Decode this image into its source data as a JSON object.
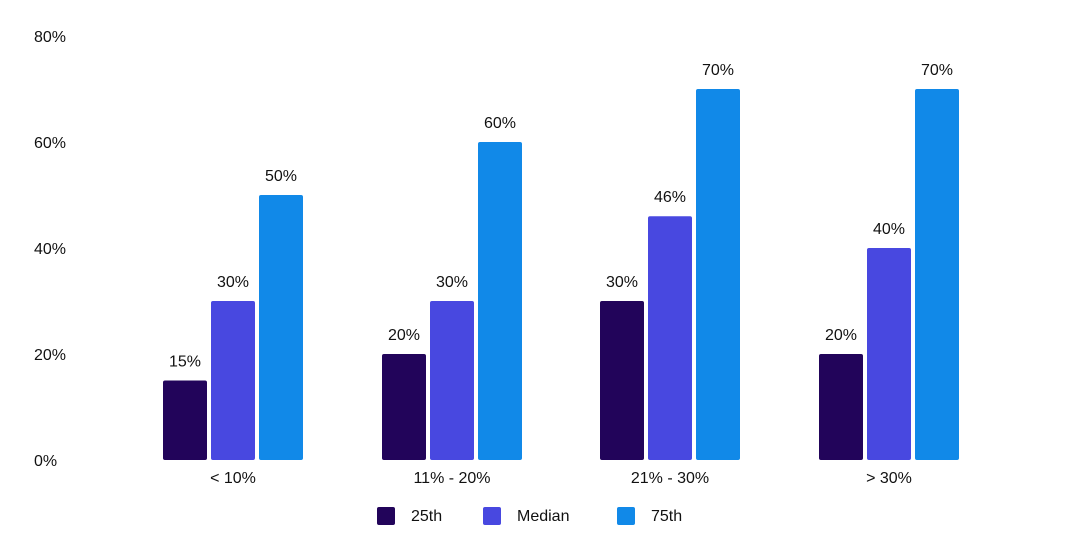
{
  "chart_data": {
    "type": "bar",
    "title": "",
    "xlabel": "",
    "ylabel": "",
    "ylim": [
      0,
      80
    ],
    "yticks": [
      "0%",
      "20%",
      "40%",
      "60%",
      "80%"
    ],
    "ytick_values": [
      0,
      20,
      40,
      60,
      80
    ],
    "categories": [
      "< 10%",
      "11% - 20%",
      "21% - 30%",
      "> 30%"
    ],
    "series": [
      {
        "name": "25th",
        "color": "#22045a",
        "values": [
          15,
          20,
          30,
          20
        ],
        "labels": [
          "15%",
          "20%",
          "30%",
          "20%"
        ]
      },
      {
        "name": "Median",
        "color": "#4848e0",
        "values": [
          30,
          30,
          46,
          40
        ],
        "labels": [
          "30%",
          "30%",
          "46%",
          "40%"
        ]
      },
      {
        "name": "75th",
        "color": "#1189e8",
        "values": [
          50,
          60,
          70,
          70
        ],
        "labels": [
          "50%",
          "60%",
          "70%",
          "70%"
        ]
      }
    ],
    "grid": false,
    "legend_position": "bottom-center"
  }
}
